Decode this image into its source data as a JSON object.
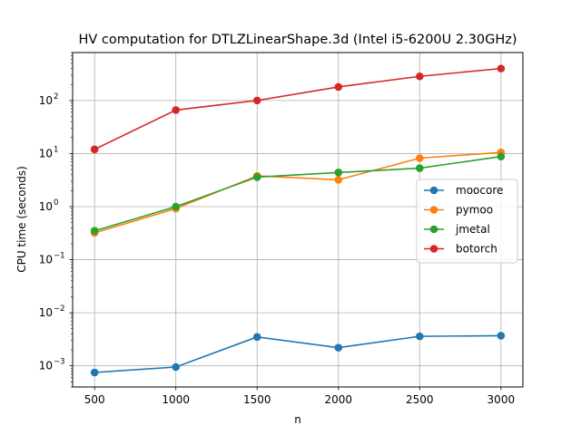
{
  "chart_data": {
    "type": "line",
    "title": "HV computation for DTLZLinearShape.3d (Intel i5-6200U 2.30GHz)",
    "xlabel": "n",
    "ylabel": "CPU time (seconds)",
    "x": [
      500,
      1000,
      1500,
      2000,
      2500,
      3000
    ],
    "xticks": [
      "500",
      "1000",
      "1500",
      "2000",
      "2500",
      "3000"
    ],
    "xlim": [
      365,
      3135
    ],
    "yscale": "log",
    "ylim": [
      0.0004,
      800
    ],
    "yticks": [
      {
        "exp": -3,
        "label": "10",
        "sup": "−3"
      },
      {
        "exp": -2,
        "label": "10",
        "sup": "−2"
      },
      {
        "exp": -1,
        "label": "10",
        "sup": "−1"
      },
      {
        "exp": 0,
        "label": "10",
        "sup": "0"
      },
      {
        "exp": 1,
        "label": "10",
        "sup": "1"
      },
      {
        "exp": 2,
        "label": "10",
        "sup": "2"
      }
    ],
    "grid": true,
    "legend": "center-right",
    "series": [
      {
        "name": "moocore",
        "color": "#1f77b4",
        "values": [
          0.00075,
          0.00095,
          0.0035,
          0.0022,
          0.0036,
          0.0037
        ]
      },
      {
        "name": "pymoo",
        "color": "#ff7f0e",
        "values": [
          0.32,
          0.92,
          3.8,
          3.2,
          8.2,
          10.5
        ]
      },
      {
        "name": "jmetal",
        "color": "#2ca02c",
        "values": [
          0.35,
          1.0,
          3.6,
          4.4,
          5.3,
          8.8
        ]
      },
      {
        "name": "botorch",
        "color": "#d62728",
        "values": [
          12,
          66,
          100,
          180,
          285,
          400
        ]
      }
    ]
  }
}
